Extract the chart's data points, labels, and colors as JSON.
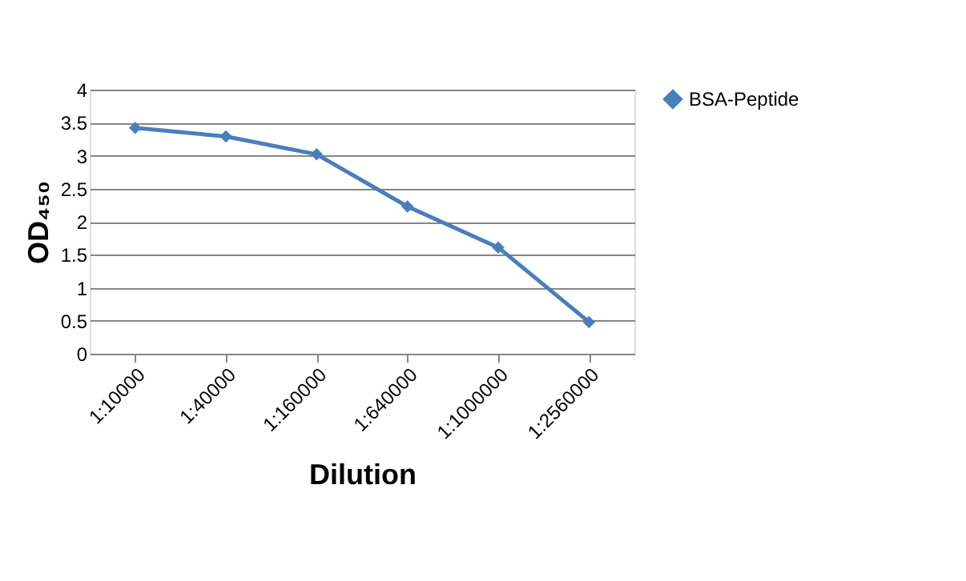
{
  "chart_data": {
    "type": "line",
    "xlabel": "Dilution",
    "ylabel": "OD₄₅₀",
    "categories": [
      "1:10000",
      "1:40000",
      "1:160000",
      "1:640000",
      "1:1000000",
      "1:2560000"
    ],
    "series": [
      {
        "name": "BSA-Peptide",
        "color": "#4a7ebb",
        "values": [
          3.42,
          3.29,
          3.02,
          2.23,
          1.61,
          0.48
        ]
      }
    ],
    "ylim": [
      0,
      4
    ],
    "yticks": [
      0,
      0.5,
      1,
      1.5,
      2,
      2.5,
      3,
      3.5,
      4
    ],
    "grid": "y",
    "legend": "right",
    "marker": "diamond",
    "line_style": "solid"
  }
}
